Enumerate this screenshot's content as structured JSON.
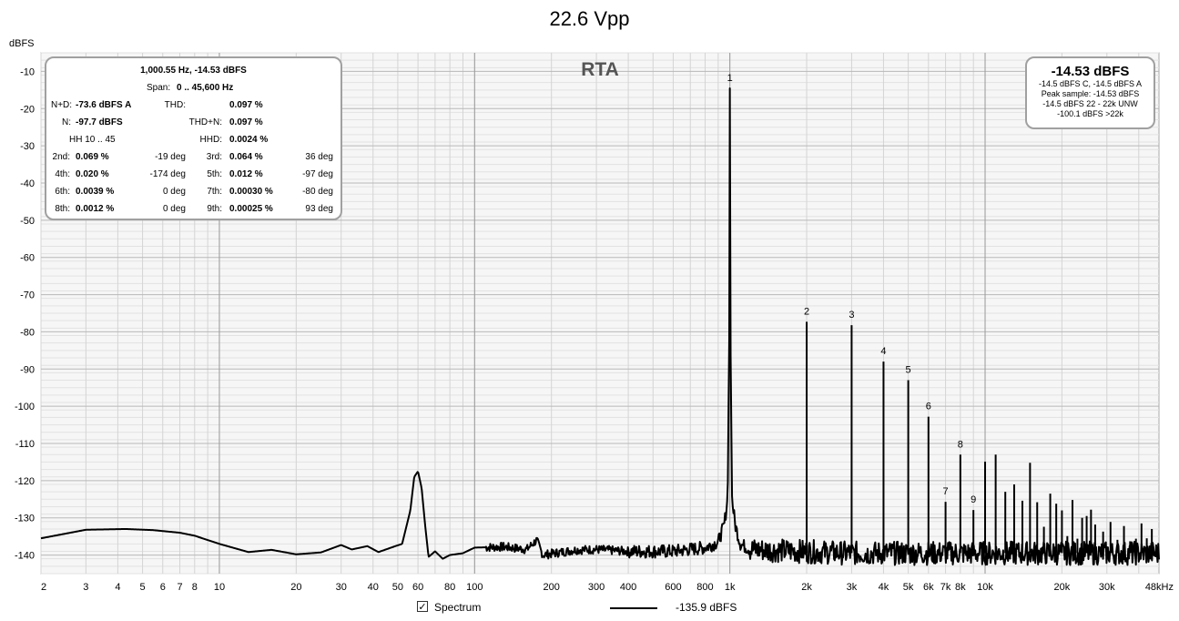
{
  "chart_data": {
    "type": "line",
    "title": "22.6 Vpp",
    "ylabel": "dBFS",
    "xlabel": "",
    "x_scale": "log",
    "xlim": [
      2,
      48000
    ],
    "ylim": [
      -145,
      -5
    ],
    "grid": true,
    "watermark": "RTA",
    "x_ticks": [
      {
        "v": 2,
        "label": "2"
      },
      {
        "v": 3,
        "label": "3"
      },
      {
        "v": 4,
        "label": "4"
      },
      {
        "v": 5,
        "label": "5"
      },
      {
        "v": 6,
        "label": "6"
      },
      {
        "v": 7,
        "label": "7"
      },
      {
        "v": 8,
        "label": "8"
      },
      {
        "v": 10,
        "label": "10"
      },
      {
        "v": 20,
        "label": "20"
      },
      {
        "v": 30,
        "label": "30"
      },
      {
        "v": 40,
        "label": "40"
      },
      {
        "v": 50,
        "label": "50"
      },
      {
        "v": 60,
        "label": "60"
      },
      {
        "v": 80,
        "label": "80"
      },
      {
        "v": 100,
        "label": "100"
      },
      {
        "v": 200,
        "label": "200"
      },
      {
        "v": 300,
        "label": "300"
      },
      {
        "v": 400,
        "label": "400"
      },
      {
        "v": 600,
        "label": "600"
      },
      {
        "v": 800,
        "label": "800"
      },
      {
        "v": 1000,
        "label": "1k"
      },
      {
        "v": 2000,
        "label": "2k"
      },
      {
        "v": 3000,
        "label": "3k"
      },
      {
        "v": 4000,
        "label": "4k"
      },
      {
        "v": 5000,
        "label": "5k"
      },
      {
        "v": 6000,
        "label": "6k"
      },
      {
        "v": 7000,
        "label": "7k"
      },
      {
        "v": 8000,
        "label": "8k"
      },
      {
        "v": 10000,
        "label": "10k"
      },
      {
        "v": 20000,
        "label": "20k"
      },
      {
        "v": 30000,
        "label": "30k"
      },
      {
        "v": 48000,
        "label": "48kHz"
      }
    ],
    "y_ticks": [
      {
        "v": -10,
        "label": "-10"
      },
      {
        "v": -20,
        "label": "-20"
      },
      {
        "v": -30,
        "label": "-30"
      },
      {
        "v": -40,
        "label": "-40"
      },
      {
        "v": -50,
        "label": "-50"
      },
      {
        "v": -60,
        "label": "-60"
      },
      {
        "v": -70,
        "label": "-70"
      },
      {
        "v": -80,
        "label": "-80"
      },
      {
        "v": -90,
        "label": "-90"
      },
      {
        "v": -100,
        "label": "-100"
      },
      {
        "v": -110,
        "label": "-110"
      },
      {
        "v": -120,
        "label": "-120"
      },
      {
        "v": -130,
        "label": "-130"
      },
      {
        "v": -140,
        "label": "-140"
      }
    ],
    "series": [
      {
        "name": "Spectrum",
        "color": "#000000",
        "baseline": [
          [
            2,
            -135.5
          ],
          [
            3,
            -133.2
          ],
          [
            4.3,
            -133
          ],
          [
            5.5,
            -133.3
          ],
          [
            7,
            -134
          ],
          [
            8,
            -134.8
          ],
          [
            10,
            -137
          ],
          [
            13,
            -139.2
          ],
          [
            16,
            -138.6
          ],
          [
            20,
            -139.8
          ],
          [
            25,
            -139.3
          ],
          [
            30,
            -137.3
          ],
          [
            33,
            -138.5
          ],
          [
            38,
            -137.6
          ],
          [
            42,
            -139.2
          ],
          [
            48,
            -137.8
          ],
          [
            52,
            -137
          ],
          [
            56,
            -128
          ],
          [
            58,
            -119
          ],
          [
            60,
            -117.5
          ],
          [
            62,
            -122
          ],
          [
            64,
            -132
          ],
          [
            66,
            -140.5
          ],
          [
            70,
            -139
          ],
          [
            75,
            -141
          ],
          [
            80,
            -140
          ],
          [
            90,
            -139.5
          ],
          [
            100,
            -138
          ],
          [
            130,
            -137.8
          ],
          [
            160,
            -138.5
          ],
          [
            175,
            -136
          ],
          [
            185,
            -140
          ],
          [
            250,
            -138.6
          ],
          [
            300,
            -138.5
          ],
          [
            400,
            -139
          ],
          [
            600,
            -139
          ],
          [
            800,
            -138
          ],
          [
            900,
            -136.5
          ],
          [
            950,
            -132
          ],
          [
            980,
            -125
          ],
          [
            995,
            -80
          ],
          [
            1000,
            -14.53
          ],
          [
            1005,
            -80
          ],
          [
            1020,
            -125
          ],
          [
            1050,
            -132
          ],
          [
            1100,
            -137
          ],
          [
            1200,
            -138.5
          ],
          [
            3000,
            -139.5
          ],
          [
            10000,
            -139.5
          ],
          [
            48000,
            -139.5
          ]
        ],
        "noise_floor": -139.5,
        "peaks": [
          [
            2000,
            -77.3
          ],
          [
            3000,
            -78.2
          ],
          [
            4000,
            -88
          ],
          [
            5000,
            -93
          ],
          [
            6000,
            -102.8
          ],
          [
            7000,
            -125.7
          ],
          [
            8000,
            -113
          ],
          [
            9000,
            -127.9
          ],
          [
            10000,
            -114.9
          ],
          [
            11000,
            -113
          ],
          [
            12000,
            -123
          ],
          [
            13000,
            -121
          ],
          [
            14000,
            -125.4
          ],
          [
            15000,
            -115.2
          ],
          [
            16000,
            -125.8
          ],
          [
            17000,
            -132.4
          ],
          [
            18000,
            -123.5
          ],
          [
            19000,
            -126.2
          ],
          [
            20000,
            -128
          ],
          [
            21000,
            -134.9
          ],
          [
            22000,
            -125.2
          ],
          [
            23000,
            -135.6
          ],
          [
            24000,
            -130
          ],
          [
            25000,
            -129.5
          ],
          [
            26000,
            -127.8
          ],
          [
            27000,
            -131.8
          ],
          [
            29000,
            -133.7
          ],
          [
            31000,
            -131.1
          ],
          [
            33000,
            -135.9
          ],
          [
            35000,
            -132.2
          ],
          [
            37000,
            -136.3
          ],
          [
            39000,
            -135.6
          ],
          [
            41000,
            -131.5
          ],
          [
            43000,
            -135.5
          ],
          [
            45000,
            -133
          ]
        ]
      }
    ],
    "harmonic_labels": [
      {
        "n": "1",
        "x": 1000,
        "y": -14.53
      },
      {
        "n": "2",
        "x": 2000,
        "y": -77.3
      },
      {
        "n": "3",
        "x": 3000,
        "y": -78.2
      },
      {
        "n": "4",
        "x": 4000,
        "y": -88
      },
      {
        "n": "5",
        "x": 5000,
        "y": -93
      },
      {
        "n": "6",
        "x": 6000,
        "y": -102.8
      },
      {
        "n": "7",
        "x": 7000,
        "y": -125.7
      },
      {
        "n": "8",
        "x": 8000,
        "y": -113
      },
      {
        "n": "9",
        "x": 9000,
        "y": -127.9
      }
    ]
  },
  "stats": {
    "header": "1,000.55 Hz, -14.53 dBFS",
    "span_label": "Span:",
    "span_value": "0 .. 45,600 Hz",
    "nd_label": "N+D:",
    "nd_value": "-73.6 dBFS A",
    "thd_label": "THD:",
    "thd_value": "0.097 %",
    "n_label": "N:",
    "n_value": "-97.7 dBFS",
    "thdn_label": "THD+N:",
    "thdn_value": "0.097 %",
    "hh_label": "HH 10 .. 45",
    "hhd_label": "HHD:",
    "hhd_value": "0.0024 %",
    "harmonics": [
      {
        "label": "2nd:",
        "value": "0.069 %",
        "phase": "-19 deg"
      },
      {
        "label": "3rd:",
        "value": "0.064 %",
        "phase": "36 deg"
      },
      {
        "label": "4th:",
        "value": "0.020 %",
        "phase": "-174 deg"
      },
      {
        "label": "5th:",
        "value": "0.012 %",
        "phase": "-97 deg"
      },
      {
        "label": "6th:",
        "value": "0.0039 %",
        "phase": "0 deg"
      },
      {
        "label": "7th:",
        "value": "0.00030 %",
        "phase": "-80 deg"
      },
      {
        "label": "8th:",
        "value": "0.0012 %",
        "phase": "0 deg"
      },
      {
        "label": "9th:",
        "value": "0.00025 %",
        "phase": "93 deg"
      }
    ]
  },
  "level": {
    "main": "-14.53 dBFS",
    "line1": "-14.5 dBFS C, -14.5 dBFS A",
    "line2": "Peak sample: -14.53 dBFS",
    "line3": "-14.5 dBFS 22 - 22k UNW",
    "line4": "-100.1 dBFS >22k"
  },
  "legend": {
    "checked": true,
    "check_glyph": "✓",
    "label": "Spectrum",
    "value": "-135.9 dBFS"
  }
}
